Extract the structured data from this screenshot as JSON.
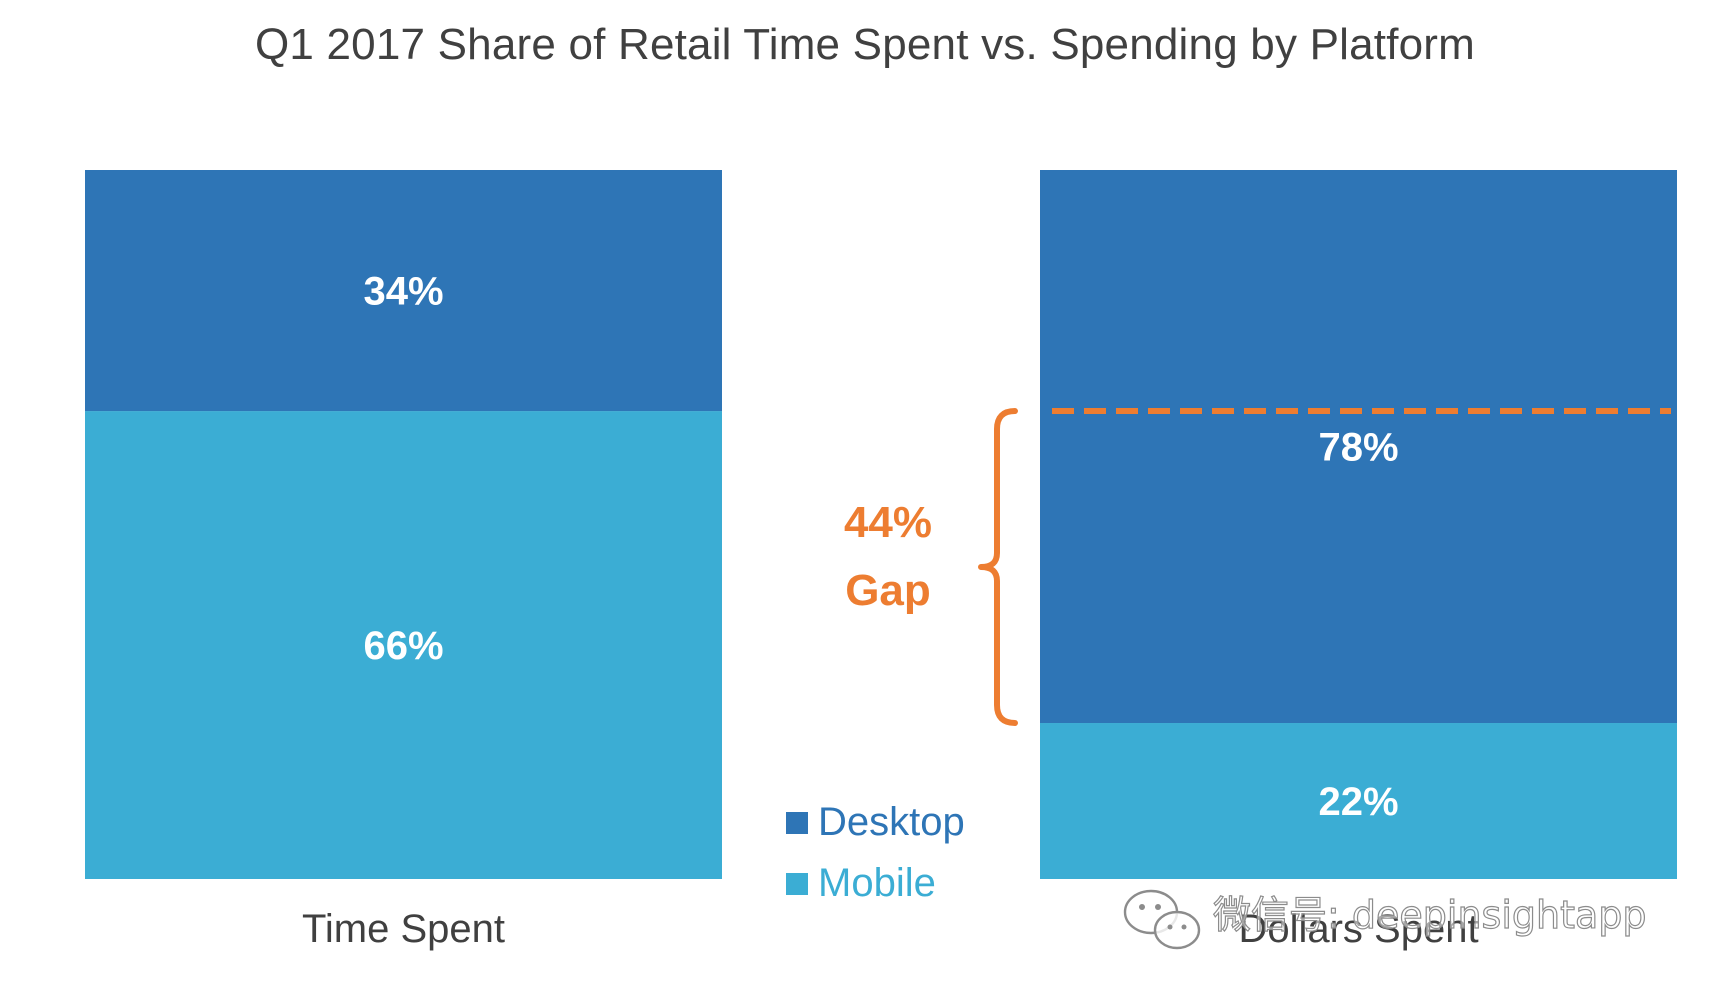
{
  "colors": {
    "desktop": "#2E75B6",
    "mobile": "#3BADD4",
    "gap": "#ED7D31",
    "title_text": "#404040"
  },
  "chart_data": {
    "type": "bar",
    "stacked": true,
    "title": "Q1 2017 Share of Retail Time Spent vs. Spending by Platform",
    "categories": [
      "Time Spent",
      "Dollars Spent"
    ],
    "series": [
      {
        "name": "Mobile",
        "values": [
          66,
          22
        ],
        "labels": [
          "66%",
          "22%"
        ]
      },
      {
        "name": "Desktop",
        "values": [
          34,
          78
        ],
        "labels": [
          "34%",
          "78%"
        ]
      }
    ],
    "ylim": [
      0,
      100
    ],
    "unit": "%",
    "legend": {
      "position": "center",
      "entries": [
        "Desktop",
        "Mobile"
      ]
    },
    "annotation": {
      "value": 44,
      "line1": "44%",
      "line2": "Gap",
      "from_value": 22,
      "to_value": 66
    }
  },
  "watermark": {
    "text": "微信号: deepinsightapp",
    "icon": "wechat-icon"
  }
}
